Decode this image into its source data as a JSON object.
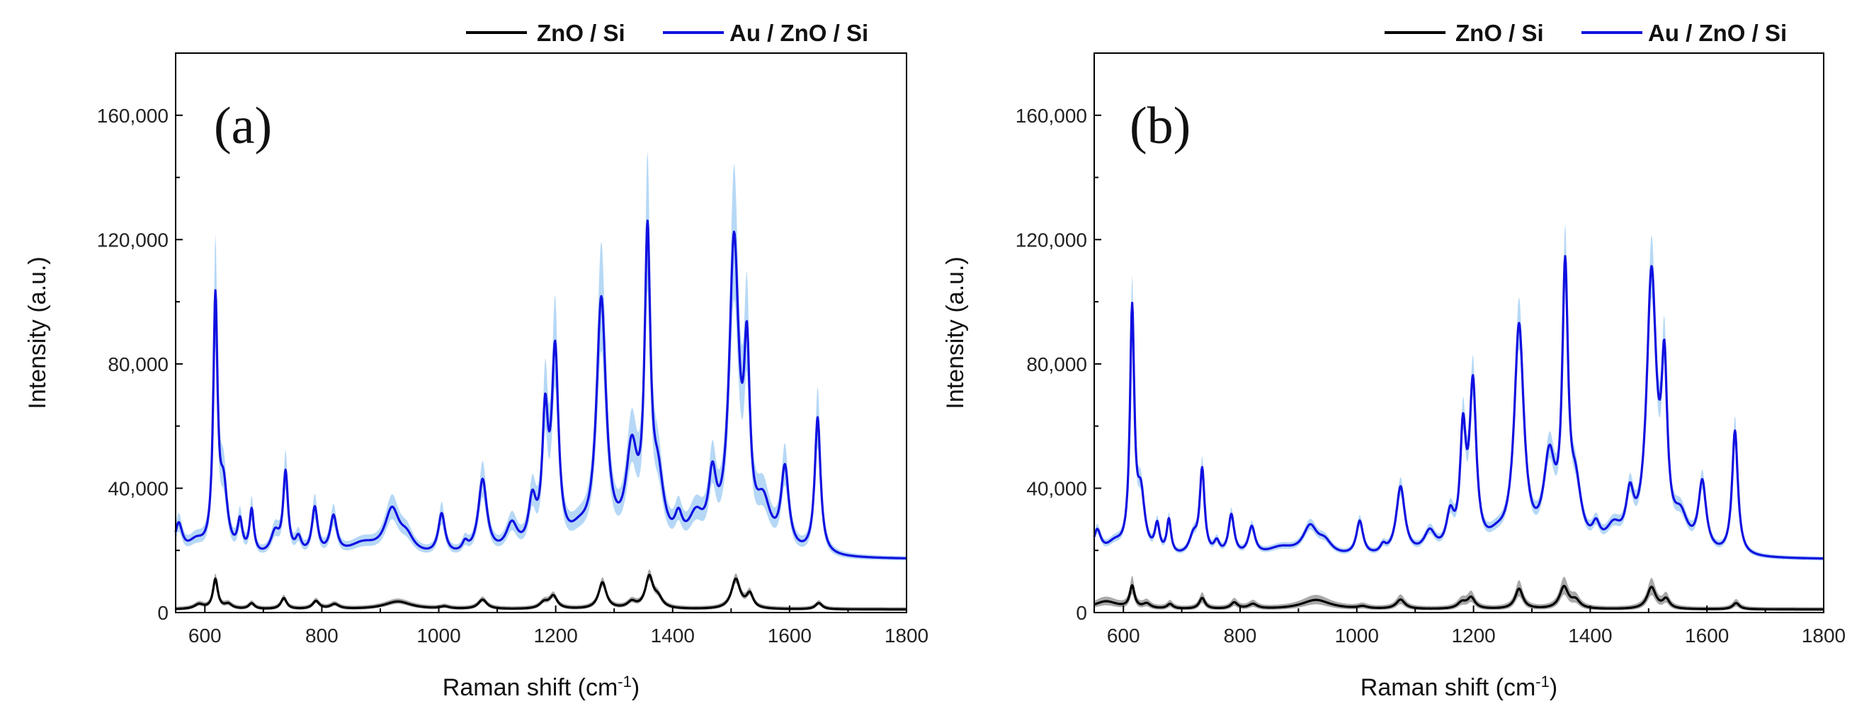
{
  "chart_data": [
    {
      "type": "line",
      "panel_label": "(a)",
      "xlabel": "Raman shift (cm",
      "xlabel_sup": "-1",
      "xlabel_close": ")",
      "ylabel": "Intensity (a.u.)",
      "xlim": [
        550,
        1800
      ],
      "ylim": [
        0,
        180000
      ],
      "xticks": [
        600,
        800,
        1000,
        1200,
        1400,
        1600,
        1800
      ],
      "yticks": [
        0,
        40000,
        80000,
        120000,
        160000
      ],
      "ytick_labels": [
        "0",
        "40,000",
        "80,000",
        "120,000",
        "160,000"
      ],
      "grid": false,
      "legend_placement": "top-right, outside",
      "series": [
        {
          "name": "ZnO / Si",
          "color": "#000000",
          "band_color": "#9a9a9a",
          "baseline": 1000,
          "peaks": [
            [
              590,
              10,
              1500
            ],
            [
              618,
              5,
              9500
            ],
            [
              640,
              8,
              1500
            ],
            [
              680,
              6,
              1800
            ],
            [
              735,
              6,
              3500
            ],
            [
              790,
              7,
              2500
            ],
            [
              822,
              9,
              1500
            ],
            [
              930,
              28,
              2500
            ],
            [
              1010,
              10,
              700
            ],
            [
              1075,
              9,
              3000
            ],
            [
              1180,
              9,
              2000
            ],
            [
              1196,
              8,
              4000
            ],
            [
              1280,
              8,
              8500
            ],
            [
              1330,
              9,
              2000
            ],
            [
              1360,
              8,
              10000
            ],
            [
              1375,
              9,
              3000
            ],
            [
              1508,
              9,
              9500
            ],
            [
              1532,
              7,
              4500
            ],
            [
              1650,
              7,
              2000
            ]
          ],
          "band_width_frac": 0.1
        },
        {
          "name": "Au / ZnO / Si",
          "color": "#1010e0",
          "band_color": "#a9d1f5",
          "baseline": 17000,
          "peaks": [
            [
              555,
              8,
              10000
            ],
            [
              585,
              18,
              4500
            ],
            [
              618,
              4.5,
              80000
            ],
            [
              632,
              8,
              20000
            ],
            [
              660,
              5,
              10000
            ],
            [
              680,
              4.5,
              14000
            ],
            [
              720,
              9,
              7000
            ],
            [
              738,
              5,
              26000
            ],
            [
              760,
              6,
              5000
            ],
            [
              788,
              6,
              15000
            ],
            [
              820,
              7,
              12000
            ],
            [
              870,
              30,
              4000
            ],
            [
              920,
              15,
              14000
            ],
            [
              945,
              15,
              5000
            ],
            [
              1005,
              7,
              13000
            ],
            [
              1045,
              6,
              3000
            ],
            [
              1075,
              9,
              24000
            ],
            [
              1125,
              12,
              9000
            ],
            [
              1160,
              8,
              15000
            ],
            [
              1182,
              6,
              40000
            ],
            [
              1199,
              7,
              62000
            ],
            [
              1240,
              20,
              5000
            ],
            [
              1278,
              10,
              80000
            ],
            [
              1330,
              12,
              30000
            ],
            [
              1357,
              6,
              95000
            ],
            [
              1375,
              12,
              20000
            ],
            [
              1410,
              8,
              8000
            ],
            [
              1440,
              16,
              10000
            ],
            [
              1468,
              8,
              20000
            ],
            [
              1505,
              10,
              98000
            ],
            [
              1527,
              6,
              55000
            ],
            [
              1555,
              15,
              14000
            ],
            [
              1592,
              8,
              26000
            ],
            [
              1648,
              6,
              44000
            ]
          ],
          "band_width_frac": 0.2
        }
      ]
    },
    {
      "type": "line",
      "panel_label": "(b)",
      "xlabel": "Raman shift (cm",
      "xlabel_sup": "-1",
      "xlabel_close": ")",
      "ylabel": "Intensity (a.u.)",
      "xlim": [
        550,
        1800
      ],
      "ylim": [
        0,
        180000
      ],
      "xticks": [
        600,
        800,
        1000,
        1200,
        1400,
        1600,
        1800
      ],
      "yticks": [
        0,
        40000,
        80000,
        120000,
        160000
      ],
      "ytick_labels": [
        "0",
        "40,000",
        "80,000",
        "120,000",
        "160,000"
      ],
      "grid": false,
      "legend_placement": "top-right, outside",
      "series": [
        {
          "name": "ZnO / Si",
          "color": "#000000",
          "band_color": "#9a9a9a",
          "baseline": 1000,
          "peaks": [
            [
              570,
              25,
              2500
            ],
            [
              615,
              5,
              7000
            ],
            [
              640,
              8,
              1500
            ],
            [
              680,
              6,
              1500
            ],
            [
              735,
              6,
              3500
            ],
            [
              790,
              7,
              2000
            ],
            [
              822,
              9,
              1500
            ],
            [
              930,
              30,
              3000
            ],
            [
              1010,
              10,
              700
            ],
            [
              1075,
              9,
              3000
            ],
            [
              1180,
              9,
              2000
            ],
            [
              1196,
              8,
              3500
            ],
            [
              1278,
              8,
              6500
            ],
            [
              1355,
              9,
              7000
            ],
            [
              1375,
              9,
              2500
            ],
            [
              1505,
              9,
              7000
            ],
            [
              1530,
              7,
              3000
            ],
            [
              1650,
              7,
              2000
            ]
          ],
          "band_width_frac": 0.3
        },
        {
          "name": "Au / ZnO / Si",
          "color": "#1010e0",
          "band_color": "#a9d1f5",
          "baseline": 17000,
          "peaks": [
            [
              555,
              8,
              8000
            ],
            [
              585,
              18,
              4000
            ],
            [
              615,
              4.5,
              77000
            ],
            [
              630,
              8,
              18000
            ],
            [
              658,
              5,
              9000
            ],
            [
              678,
              4.5,
              11000
            ],
            [
              720,
              9,
              6000
            ],
            [
              735,
              5,
              27000
            ],
            [
              760,
              6,
              4000
            ],
            [
              785,
              6,
              13000
            ],
            [
              820,
              7,
              9000
            ],
            [
              870,
              30,
              3000
            ],
            [
              920,
              15,
              9000
            ],
            [
              945,
              15,
              4000
            ],
            [
              1005,
              7,
              11000
            ],
            [
              1045,
              6,
              2500
            ],
            [
              1075,
              9,
              22000
            ],
            [
              1125,
              12,
              7000
            ],
            [
              1160,
              8,
              11000
            ],
            [
              1182,
              6,
              36000
            ],
            [
              1199,
              7,
              52000
            ],
            [
              1240,
              20,
              4000
            ],
            [
              1278,
              10,
              72000
            ],
            [
              1330,
              12,
              28000
            ],
            [
              1357,
              6,
              85000
            ],
            [
              1375,
              12,
              18000
            ],
            [
              1410,
              8,
              6000
            ],
            [
              1440,
              16,
              7000
            ],
            [
              1468,
              8,
              15000
            ],
            [
              1505,
              10,
              88000
            ],
            [
              1527,
              6,
              52000
            ],
            [
              1555,
              15,
              10000
            ],
            [
              1592,
              8,
              22000
            ],
            [
              1648,
              6,
              40000
            ]
          ],
          "band_width_frac": 0.1
        }
      ]
    }
  ]
}
